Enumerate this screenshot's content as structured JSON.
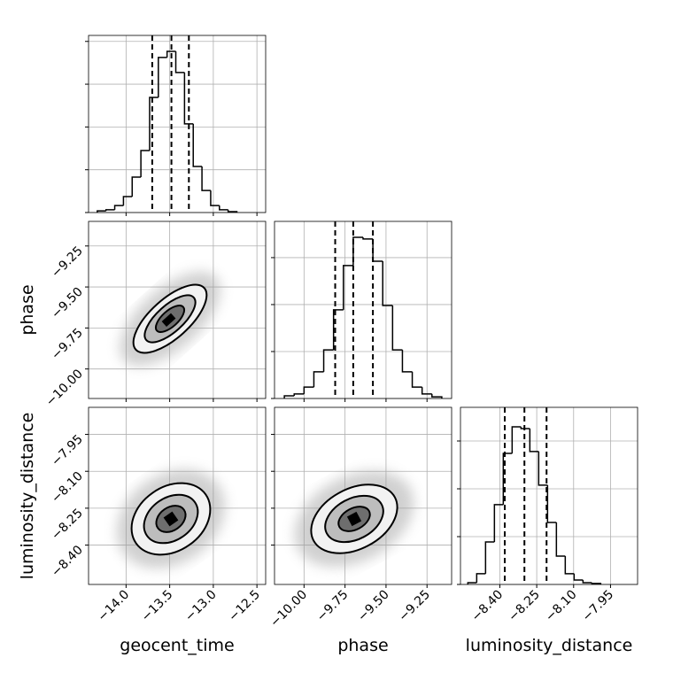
{
  "chart_data": {
    "type": "corner",
    "grid": true,
    "color": "#000000",
    "grid_color": "#b0b0b0",
    "parameters": [
      {
        "label": "geocent_time",
        "lim": [
          -14.43,
          -12.4
        ],
        "ticks": [
          {
            "value": -14.0,
            "label": "−14.0"
          },
          {
            "value": -13.5,
            "label": "−13.5"
          },
          {
            "value": -13.0,
            "label": "−13.0"
          },
          {
            "value": -12.5,
            "label": "−12.5"
          }
        ],
        "bins": [
          -14.33,
          -14.23,
          -14.13,
          -14.03,
          -13.93,
          -13.83,
          -13.73,
          -13.63,
          -13.53,
          -13.43,
          -13.33,
          -13.23,
          -13.13,
          -13.03,
          -12.93,
          -12.83,
          -12.73
        ],
        "values": [
          10,
          16,
          41,
          93,
          207,
          362,
          673,
          906,
          942,
          818,
          518,
          269,
          129,
          41,
          16,
          5
        ],
        "hist_ylim": [
          0,
          1035
        ],
        "hist_yticks": [
          0,
          250,
          500,
          750,
          1000
        ],
        "quantiles": [
          -13.7,
          -13.48,
          -13.28
        ]
      },
      {
        "label": "phase",
        "lim": [
          -10.18,
          -9.1
        ],
        "ticks": [
          {
            "value": -10.0,
            "label": "−10.00"
          },
          {
            "value": -9.75,
            "label": "−9.75"
          },
          {
            "value": -9.5,
            "label": "−9.50"
          },
          {
            "value": -9.25,
            "label": "−9.25"
          }
        ],
        "bins": [
          -10.12,
          -10.06,
          -10.0,
          -9.94,
          -9.88,
          -9.82,
          -9.76,
          -9.7,
          -9.64,
          -9.58,
          -9.52,
          -9.46,
          -9.4,
          -9.34,
          -9.28,
          -9.22,
          -9.16
        ],
        "values": [
          14,
          24,
          61,
          142,
          259,
          472,
          708,
          858,
          849,
          731,
          495,
          259,
          142,
          61,
          24,
          9
        ],
        "hist_ylim": [
          0,
          943
        ],
        "hist_yticks": [
          0,
          250,
          500,
          750
        ],
        "quantiles": [
          -9.81,
          -9.7,
          -9.58
        ]
      },
      {
        "label": "luminosity_distance",
        "lim": [
          -8.56,
          -7.84
        ],
        "ticks": [
          {
            "value": -8.4,
            "label": "−8.40"
          },
          {
            "value": -8.25,
            "label": "−8.25"
          },
          {
            "value": -8.1,
            "label": "−8.10"
          },
          {
            "value": -7.95,
            "label": "−7.95"
          }
        ],
        "bins": [
          -8.53,
          -8.494,
          -8.458,
          -8.422,
          -8.386,
          -8.35,
          -8.314,
          -8.278,
          -8.242,
          -8.206,
          -8.17,
          -8.134,
          -8.098,
          -8.062,
          -8.026,
          -7.99
        ],
        "values": [
          9,
          56,
          222,
          417,
          685,
          824,
          815,
          695,
          519,
          324,
          148,
          56,
          23,
          9,
          5
        ],
        "hist_ylim": [
          0,
          926
        ],
        "hist_yticks": [
          0,
          250,
          500,
          750
        ],
        "quantiles": [
          -8.38,
          -8.3,
          -8.21
        ]
      }
    ]
  }
}
